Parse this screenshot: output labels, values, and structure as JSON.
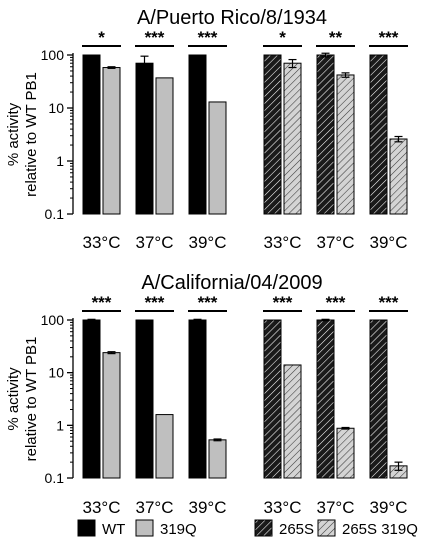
{
  "chart_data": [
    {
      "type": "bar",
      "title": "A/Puerto Rico/8/1934",
      "ylabel": [
        "% activity",
        "relative to WT PB1"
      ],
      "yscale": "log",
      "ylim": [
        0.1,
        100
      ],
      "yticks": [
        "0.1",
        "1",
        "10",
        "100"
      ],
      "groups": [
        {
          "label": "33°C",
          "pairs": [
            {
              "series": "WT",
              "value": 100,
              "err": 0
            },
            {
              "series": "319Q",
              "value": 58,
              "err": 2
            }
          ],
          "sig": "*"
        },
        {
          "label": "37°C",
          "pairs": [
            {
              "series": "WT",
              "value": 70,
              "err": 25
            },
            {
              "series": "319Q",
              "value": 37,
              "err": 0
            }
          ],
          "sig": "***"
        },
        {
          "label": "39°C",
          "pairs": [
            {
              "series": "WT",
              "value": 100,
              "err": 0
            },
            {
              "series": "319Q",
              "value": 13,
              "err": 0
            }
          ],
          "sig": "***"
        },
        {
          "label": "33°C",
          "pairs": [
            {
              "series": "265S",
              "value": 100,
              "err": 0
            },
            {
              "series": "265S 319Q",
              "value": 70,
              "err": 12
            }
          ],
          "sig": "*"
        },
        {
          "label": "37°C",
          "pairs": [
            {
              "series": "265S",
              "value": 100,
              "err": 8
            },
            {
              "series": "265S 319Q",
              "value": 42,
              "err": 4
            }
          ],
          "sig": "**"
        },
        {
          "label": "39°C",
          "pairs": [
            {
              "series": "265S",
              "value": 100,
              "err": 0
            },
            {
              "series": "265S 319Q",
              "value": 2.6,
              "err": 0.3
            }
          ],
          "sig": "***"
        }
      ]
    },
    {
      "type": "bar",
      "title": "A/California/04/2009",
      "ylabel": [
        "% activity",
        "relative to WT PB1"
      ],
      "yscale": "log",
      "ylim": [
        0.1,
        100
      ],
      "yticks": [
        "0.1",
        "1",
        "10",
        "100"
      ],
      "groups": [
        {
          "label": "33°C",
          "pairs": [
            {
              "series": "WT",
              "value": 100,
              "err": 3
            },
            {
              "series": "319Q",
              "value": 24,
              "err": 1
            }
          ],
          "sig": "***"
        },
        {
          "label": "37°C",
          "pairs": [
            {
              "series": "WT",
              "value": 100,
              "err": 0
            },
            {
              "series": "319Q",
              "value": 1.6,
              "err": 0
            }
          ],
          "sig": "***"
        },
        {
          "label": "39°C",
          "pairs": [
            {
              "series": "WT",
              "value": 100,
              "err": 3
            },
            {
              "series": "319Q",
              "value": 0.53,
              "err": 0.02
            }
          ],
          "sig": "***"
        },
        {
          "label": "33°C",
          "pairs": [
            {
              "series": "265S",
              "value": 100,
              "err": 0
            },
            {
              "series": "265S 319Q",
              "value": 14,
              "err": 0
            }
          ],
          "sig": "***"
        },
        {
          "label": "37°C",
          "pairs": [
            {
              "series": "265S",
              "value": 100,
              "err": 3
            },
            {
              "series": "265S 319Q",
              "value": 0.88,
              "err": 0.03
            }
          ],
          "sig": "***"
        },
        {
          "label": "39°C",
          "pairs": [
            {
              "series": "265S",
              "value": 100,
              "err": 0
            },
            {
              "series": "265S 319Q",
              "value": 0.17,
              "err": 0.03
            }
          ],
          "sig": "***"
        }
      ]
    }
  ],
  "legend": [
    {
      "label": "WT",
      "fill": "#000000",
      "hatch": false
    },
    {
      "label": "319Q",
      "fill": "#bfbfbf",
      "hatch": false
    },
    {
      "label": "265S",
      "fill": "#1a1a1a",
      "hatch": true
    },
    {
      "label": "265S 319Q",
      "fill": "#d4d4d4",
      "hatch": true
    }
  ],
  "colors": {
    "wt": "#000000",
    "mut": "#bfbfbf",
    "hatch_dark": "#1a1a1a",
    "hatch_light": "#d4d4d4"
  }
}
